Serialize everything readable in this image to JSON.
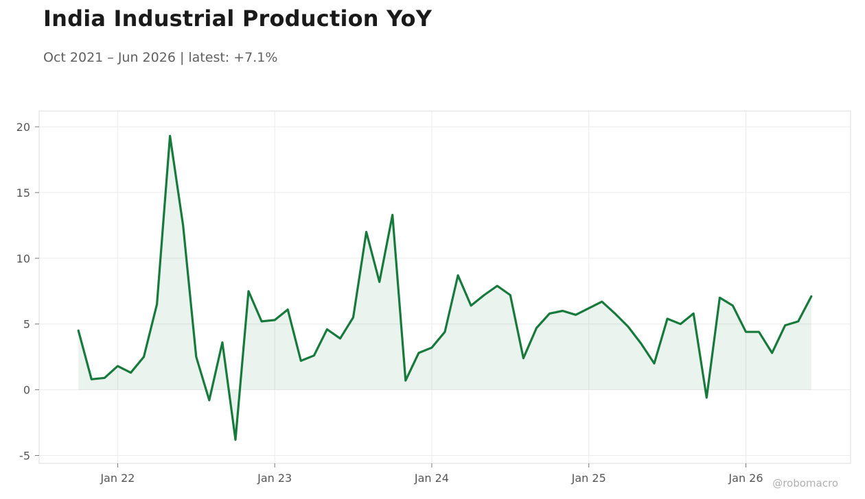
{
  "title": "India Industrial Production YoY",
  "subtitle": "Oct 2021 – Jun 2026 | latest: +7.1%",
  "watermark": "@robomacro",
  "colors": {
    "line": "#177a3c",
    "fill": "#177a3c",
    "grid": "#ebebeb",
    "frame": "#dddddd",
    "text": "#555555"
  },
  "chart_data": {
    "type": "area",
    "title": "India Industrial Production YoY",
    "subtitle": "Oct 2021 – Jun 2026 | latest: +7.1%",
    "xlabel": "",
    "ylabel": "",
    "ylim": [
      -5.6,
      21.2
    ],
    "yticks": [
      -5,
      0,
      5,
      10,
      15,
      20
    ],
    "ytick_labels": [
      "-5",
      "0",
      "5",
      "10",
      "15",
      "20"
    ],
    "xticks": [
      "2022-01",
      "2023-01",
      "2024-01",
      "2025-01",
      "2026-01"
    ],
    "xtick_labels": [
      "Jan 22",
      "Jan 23",
      "Jan 24",
      "Jan 25",
      "Jan 26"
    ],
    "xlim": [
      "2021-07",
      "2026-09"
    ],
    "grid": true,
    "series": [
      {
        "x": [
          "2021-10",
          "2021-11",
          "2021-12",
          "2022-01",
          "2022-02",
          "2022-03",
          "2022-04",
          "2022-05",
          "2022-06",
          "2022-07",
          "2022-08",
          "2022-09",
          "2022-10",
          "2022-11",
          "2022-12",
          "2023-01",
          "2023-02",
          "2023-03",
          "2023-04",
          "2023-05",
          "2023-06",
          "2023-07",
          "2023-08",
          "2023-09",
          "2023-10",
          "2023-11",
          "2023-12",
          "2024-01",
          "2024-02",
          "2024-03",
          "2024-04",
          "2024-05",
          "2024-06",
          "2024-07",
          "2024-08",
          "2024-09",
          "2024-10",
          "2024-11",
          "2024-12",
          "2025-01",
          "2025-02",
          "2025-03",
          "2025-04",
          "2025-05",
          "2025-06",
          "2025-07",
          "2025-08",
          "2025-09",
          "2025-10",
          "2025-11",
          "2025-12",
          "2026-01",
          "2026-02",
          "2026-03",
          "2026-04",
          "2026-05",
          "2026-06"
        ],
        "values": [
          4.5,
          0.8,
          0.9,
          1.8,
          1.3,
          2.5,
          6.5,
          19.3,
          12.5,
          2.5,
          -0.8,
          3.6,
          -3.8,
          7.5,
          5.2,
          5.3,
          6.1,
          2.2,
          2.6,
          4.6,
          3.9,
          5.5,
          12.0,
          8.2,
          13.3,
          0.7,
          2.8,
          3.2,
          4.4,
          8.7,
          6.4,
          7.2,
          7.9,
          7.2,
          2.4,
          4.7,
          5.8,
          6.0,
          5.7,
          6.2,
          6.7,
          5.8,
          4.8,
          3.5,
          2.0,
          5.4,
          5.0,
          5.8,
          -0.6,
          7.0,
          6.4,
          4.4,
          4.4,
          2.8,
          4.9,
          5.2,
          7.1
        ]
      }
    ]
  }
}
